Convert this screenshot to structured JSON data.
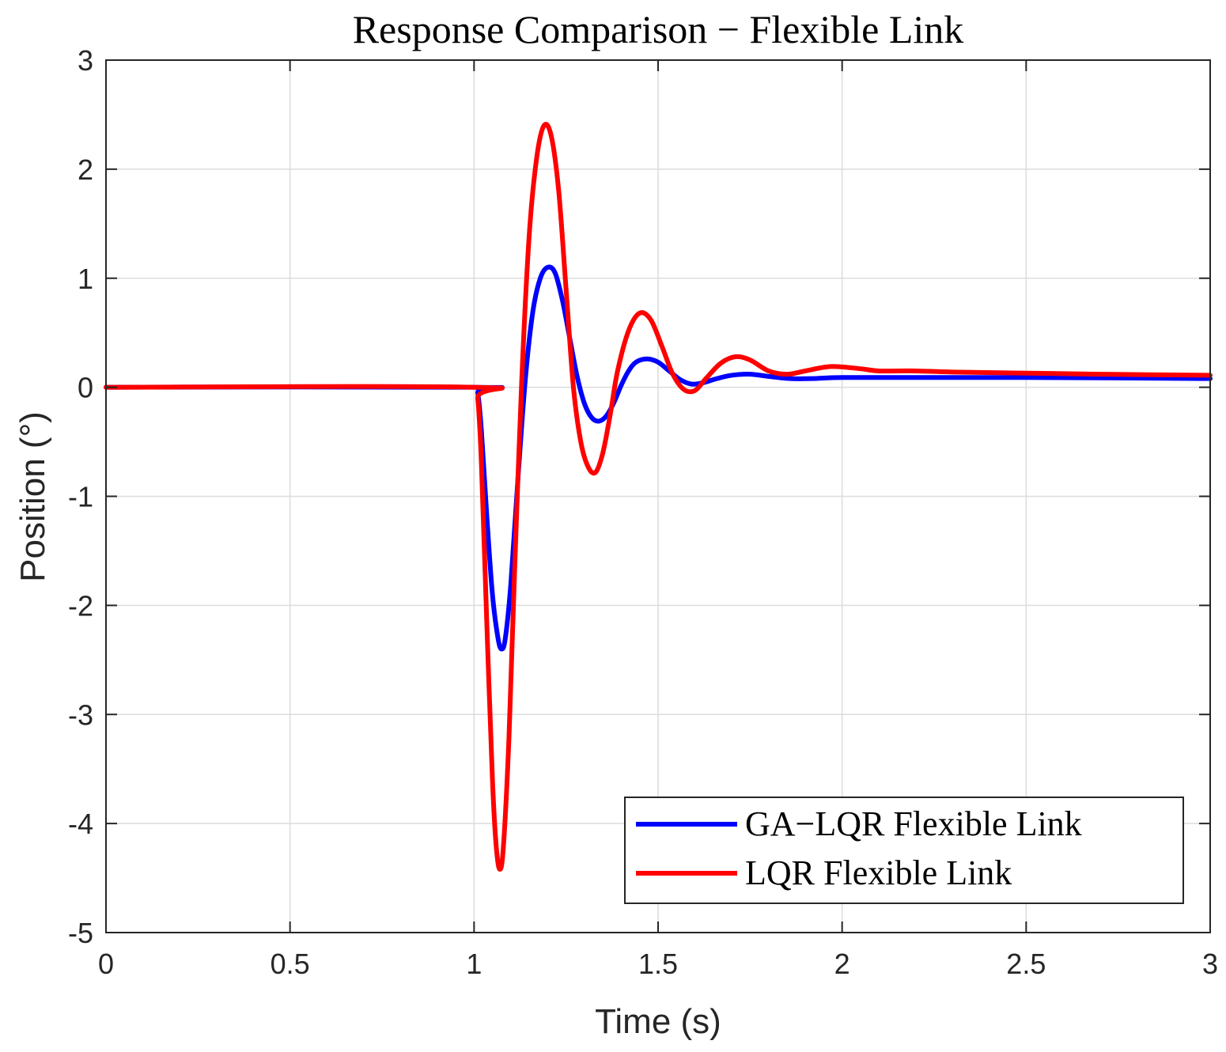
{
  "chart_data": {
    "type": "line",
    "title": "Response Comparison − Flexible Link",
    "xlabel": "Time (s)",
    "ylabel": "Position (°)",
    "xlim": [
      0,
      3
    ],
    "ylim": [
      -5,
      3
    ],
    "xticks": [
      0,
      0.5,
      1,
      1.5,
      2,
      2.5,
      3
    ],
    "xtick_labels": [
      "0",
      "0.5",
      "1",
      "1.5",
      "2",
      "2.5",
      "3"
    ],
    "yticks": [
      3,
      2,
      1,
      0,
      -1,
      -2,
      -3,
      -4,
      -5
    ],
    "ytick_labels": [
      "3",
      "2",
      "1",
      "0",
      "-1",
      "-2",
      "-3",
      "-4",
      "-5"
    ],
    "grid": true,
    "legend_position": "bottom-right",
    "series": [
      {
        "name": "GA−LQR Flexible Link",
        "color": "#0000ff",
        "points": [
          [
            0,
            0
          ],
          [
            1.0,
            0
          ],
          [
            1.01,
            -0.05
          ],
          [
            1.02,
            -0.4
          ],
          [
            1.035,
            -1.2
          ],
          [
            1.05,
            -1.9
          ],
          [
            1.065,
            -2.3
          ],
          [
            1.075,
            -2.4
          ],
          [
            1.085,
            -2.3
          ],
          [
            1.1,
            -1.8
          ],
          [
            1.12,
            -0.8
          ],
          [
            1.14,
            0.1
          ],
          [
            1.16,
            0.7
          ],
          [
            1.18,
            1.0
          ],
          [
            1.2,
            1.1
          ],
          [
            1.22,
            1.05
          ],
          [
            1.24,
            0.8
          ],
          [
            1.26,
            0.45
          ],
          [
            1.28,
            0.1
          ],
          [
            1.3,
            -0.15
          ],
          [
            1.32,
            -0.28
          ],
          [
            1.34,
            -0.31
          ],
          [
            1.36,
            -0.26
          ],
          [
            1.38,
            -0.14
          ],
          [
            1.4,
            0.02
          ],
          [
            1.42,
            0.15
          ],
          [
            1.44,
            0.23
          ],
          [
            1.47,
            0.26
          ],
          [
            1.5,
            0.23
          ],
          [
            1.53,
            0.15
          ],
          [
            1.56,
            0.07
          ],
          [
            1.59,
            0.03
          ],
          [
            1.62,
            0.04
          ],
          [
            1.66,
            0.08
          ],
          [
            1.7,
            0.11
          ],
          [
            1.75,
            0.12
          ],
          [
            1.8,
            0.1
          ],
          [
            1.86,
            0.08
          ],
          [
            1.92,
            0.08
          ],
          [
            2.0,
            0.09
          ],
          [
            2.2,
            0.09
          ],
          [
            2.5,
            0.09
          ],
          [
            3.0,
            0.08
          ]
        ]
      },
      {
        "name": "LQR Flexible Link",
        "color": "#ff0000",
        "points": [
          [
            0,
            0
          ],
          [
            1.0,
            0
          ],
          [
            1.01,
            -0.1
          ],
          [
            1.02,
            -0.7
          ],
          [
            1.035,
            -2.2
          ],
          [
            1.05,
            -3.6
          ],
          [
            1.06,
            -4.2
          ],
          [
            1.07,
            -4.42
          ],
          [
            1.08,
            -4.2
          ],
          [
            1.095,
            -3.2
          ],
          [
            1.11,
            -1.7
          ],
          [
            1.13,
            0.1
          ],
          [
            1.15,
            1.4
          ],
          [
            1.17,
            2.1
          ],
          [
            1.19,
            2.4
          ],
          [
            1.21,
            2.3
          ],
          [
            1.23,
            1.8
          ],
          [
            1.25,
            0.9
          ],
          [
            1.27,
            0.0
          ],
          [
            1.29,
            -0.5
          ],
          [
            1.31,
            -0.73
          ],
          [
            1.33,
            -0.78
          ],
          [
            1.35,
            -0.6
          ],
          [
            1.37,
            -0.25
          ],
          [
            1.39,
            0.15
          ],
          [
            1.42,
            0.52
          ],
          [
            1.45,
            0.68
          ],
          [
            1.48,
            0.62
          ],
          [
            1.51,
            0.38
          ],
          [
            1.54,
            0.12
          ],
          [
            1.57,
            -0.02
          ],
          [
            1.6,
            -0.03
          ],
          [
            1.63,
            0.08
          ],
          [
            1.67,
            0.22
          ],
          [
            1.71,
            0.28
          ],
          [
            1.75,
            0.25
          ],
          [
            1.8,
            0.15
          ],
          [
            1.85,
            0.12
          ],
          [
            1.9,
            0.15
          ],
          [
            1.97,
            0.19
          ],
          [
            2.05,
            0.17
          ],
          [
            2.1,
            0.15
          ],
          [
            2.2,
            0.15
          ],
          [
            2.3,
            0.14
          ],
          [
            2.5,
            0.13
          ],
          [
            2.7,
            0.12
          ],
          [
            3.0,
            0.11
          ]
        ]
      }
    ]
  }
}
